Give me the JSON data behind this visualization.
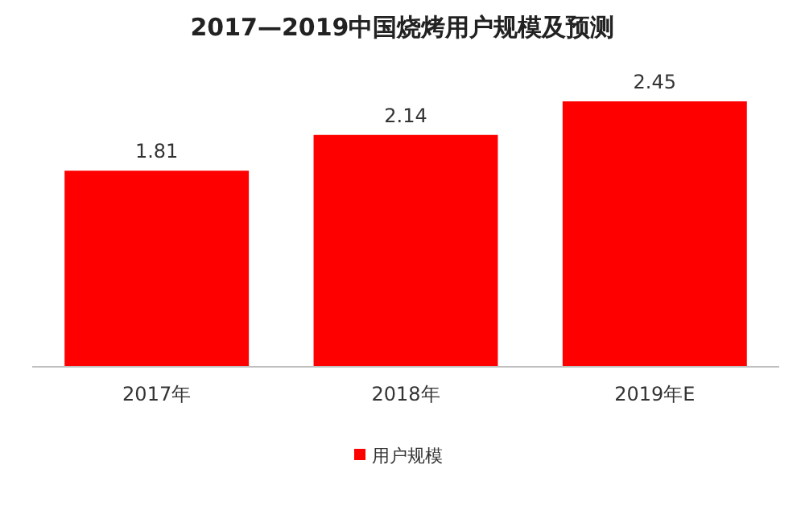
{
  "chart_data": {
    "type": "bar",
    "title": "2017—2019中国烧烤用户规模及预测",
    "categories": [
      "2017年",
      "2018年",
      "2019年E"
    ],
    "series": [
      {
        "name": "用户规模",
        "color": "#ff0000",
        "values": [
          1.81,
          2.14,
          2.45
        ]
      }
    ],
    "data_labels": true,
    "legend": "bottom"
  }
}
